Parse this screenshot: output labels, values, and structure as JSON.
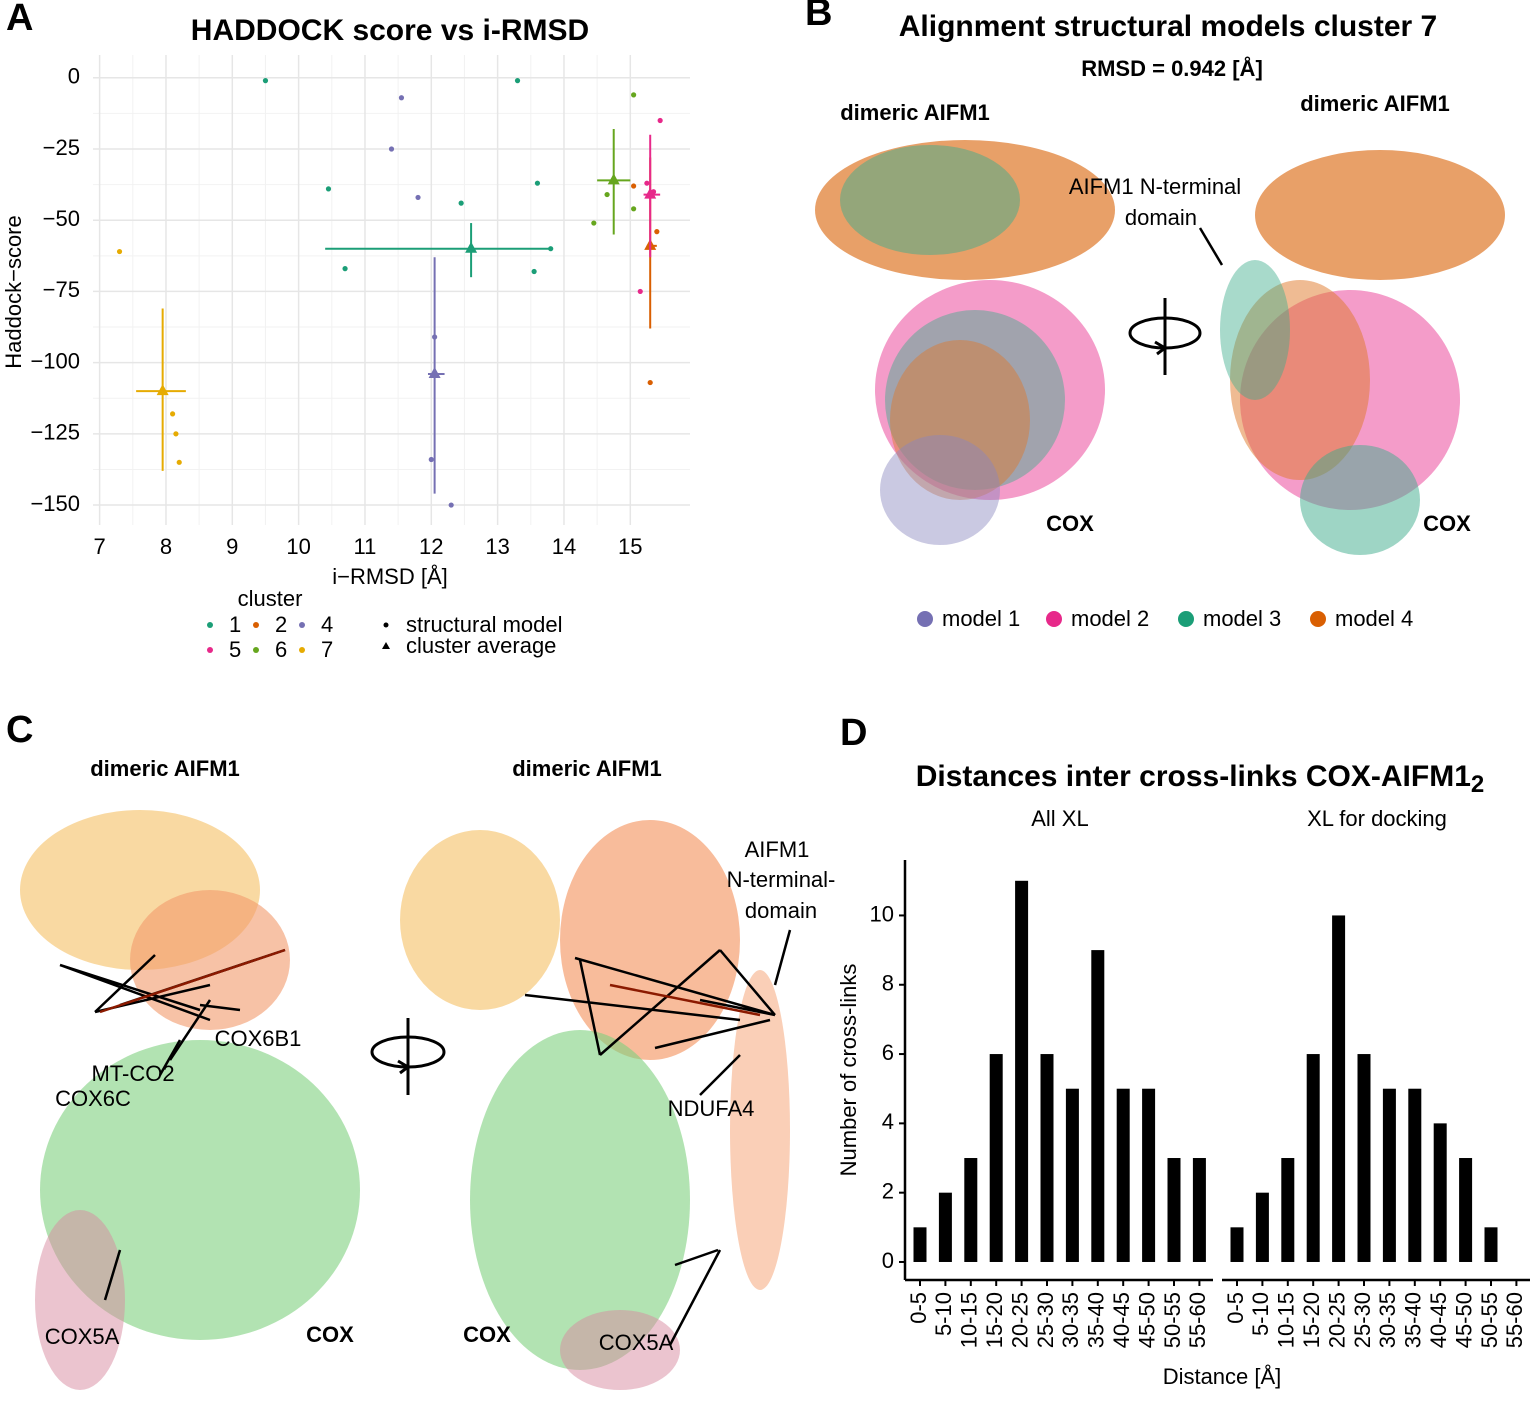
{
  "chart_data": [
    {
      "type": "scatter",
      "panel": "A",
      "title": "HADDOCK score vs i-RMSD",
      "x_label": "i−RMSD [Å]",
      "y_label": "Haddock−score",
      "xlim": [
        6.9,
        15.9
      ],
      "ylim": [
        -157,
        8
      ],
      "grid": true,
      "xticks": [
        7,
        8,
        9,
        10,
        11,
        12,
        13,
        14,
        15
      ],
      "yticks": [
        0,
        {
          "value": -25,
          "label": "−25"
        },
        {
          "value": -50,
          "label": "−50"
        },
        {
          "value": -75,
          "label": "−75"
        },
        {
          "value": -100,
          "label": "−100"
        },
        {
          "value": -125,
          "label": "−125"
        },
        {
          "value": -150,
          "label": "−150"
        }
      ],
      "legend_title": "cluster",
      "shape_legend": [
        "structural model",
        "cluster average"
      ],
      "series": [
        {
          "name": "1",
          "color": "#1b9e77",
          "x": [
            9.5,
            10.45,
            10.7,
            12.45,
            13.3,
            13.55,
            13.6,
            13.8
          ],
          "values": [
            -1,
            -39,
            -67,
            -44,
            -1,
            -68,
            -37,
            -60
          ],
          "avg_x": 12.6,
          "avg_y": -60,
          "y_low": -70,
          "y_high": -51,
          "x_low": 10.4,
          "x_high": 13.8
        },
        {
          "name": "2",
          "color": "#d95f02",
          "x": [
            15.05,
            15.4,
            15.3
          ],
          "values": [
            -38,
            -54,
            -107
          ],
          "avg_x": 15.3,
          "avg_y": -59,
          "y_low": -88,
          "y_high": -28,
          "x_low": 15.25,
          "x_high": 15.4
        },
        {
          "name": "4",
          "color": "#7570b3",
          "x": [
            11.4,
            11.55,
            11.8,
            12.0,
            12.05,
            12.3
          ],
          "values": [
            -25,
            -7,
            -42,
            -134,
            -91,
            -150
          ],
          "avg_x": 12.05,
          "avg_y": -104,
          "y_low": -146,
          "y_high": -63,
          "x_low": 11.95,
          "x_high": 12.2
        },
        {
          "name": "5",
          "color": "#e7298a",
          "x": [
            15.15,
            15.25,
            15.35,
            15.45
          ],
          "values": [
            -75,
            -37,
            -40,
            -15
          ],
          "avg_x": 15.3,
          "avg_y": -41,
          "y_low": -63,
          "y_high": -20,
          "x_low": 15.2,
          "x_high": 15.45
        },
        {
          "name": "6",
          "color": "#66a61e",
          "x": [
            14.45,
            14.65,
            15.05,
            15.05
          ],
          "values": [
            -51,
            -41,
            -46,
            -6
          ],
          "avg_x": 14.75,
          "avg_y": -36,
          "y_low": -55,
          "y_high": -18,
          "x_low": 14.5,
          "x_high": 15.0
        },
        {
          "name": "7",
          "color": "#e6ab02",
          "x": [
            7.3,
            8.1,
            8.15,
            8.2
          ],
          "values": [
            -61,
            -118,
            -125,
            -135
          ],
          "avg_x": 7.95,
          "avg_y": -110,
          "y_low": -138,
          "y_high": -81,
          "x_low": 7.55,
          "x_high": 8.3
        }
      ]
    },
    {
      "type": "bar",
      "panel": "D",
      "title": "Distances inter cross-links COX-AIFM1",
      "title_subscript": "2",
      "x_label": "Distance [Å]",
      "y_label": "Number of cross-links",
      "color": "#000000",
      "ylim": [
        -0.52,
        11.6
      ],
      "yticks": [
        0,
        2,
        4,
        6,
        8,
        10
      ],
      "categories": [
        "0-5",
        "5-10",
        "10-15",
        "15-20",
        "20-25",
        "25-30",
        "30-35",
        "35-40",
        "40-45",
        "45-50",
        "50-55",
        "55-60"
      ],
      "series": [
        {
          "name": "All XL",
          "values": [
            1,
            2,
            3,
            6,
            11,
            6,
            5,
            9,
            5,
            5,
            3,
            3
          ]
        },
        {
          "name": "XL for docking",
          "values": [
            1,
            2,
            3,
            6,
            10,
            6,
            5,
            5,
            4,
            3,
            1,
            0
          ]
        }
      ]
    }
  ],
  "panel_b": {
    "letter": "B",
    "title": "Alignment structural models cluster 7",
    "subtitle": "RMSD = 0.942 [Å]",
    "labels": [
      "dimeric AIFM1",
      "dimeric AIFM1",
      "AIFM1 N-terminal",
      "domain",
      "COX",
      "COX"
    ],
    "legend": [
      {
        "name": "model 1",
        "color": "#7570b3"
      },
      {
        "name": "model 2",
        "color": "#e7298a"
      },
      {
        "name": "model 3",
        "color": "#1b9e77"
      },
      {
        "name": "model 4",
        "color": "#d95f02"
      }
    ]
  },
  "panel_c": {
    "letter": "C",
    "labels": [
      "dimeric AIFM1",
      "dimeric AIFM1",
      "COX6B1",
      "MT-CO2",
      "COX6C",
      "COX5A",
      "COX",
      "AIFM1",
      "N-terminal-",
      "domain",
      "NDUFA4",
      "COX",
      "COX5A"
    ]
  },
  "panel_letters": {
    "A": "A",
    "D": "D"
  }
}
